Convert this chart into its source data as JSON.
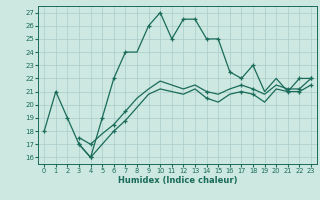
{
  "xlabel": "Humidex (Indice chaleur)",
  "bg_color": "#cce8e0",
  "grid_color": "#aacccc",
  "line_color": "#1a6b5a",
  "xlim": [
    -0.5,
    23.5
  ],
  "ylim": [
    15.5,
    27.5
  ],
  "xticks": [
    0,
    1,
    2,
    3,
    4,
    5,
    6,
    7,
    8,
    9,
    10,
    11,
    12,
    13,
    14,
    15,
    16,
    17,
    18,
    19,
    20,
    21,
    22,
    23
  ],
  "yticks": [
    16,
    17,
    18,
    19,
    20,
    21,
    22,
    23,
    24,
    25,
    26,
    27
  ],
  "main_x": [
    0,
    1,
    2,
    3,
    4,
    5,
    6,
    7,
    8,
    9,
    10,
    11,
    12,
    13,
    14,
    15,
    16,
    17,
    18,
    19,
    20,
    21,
    22,
    23
  ],
  "main_y": [
    18,
    21,
    19,
    17,
    16,
    19,
    22,
    24,
    24,
    26,
    27,
    25,
    26.5,
    26.5,
    25,
    25,
    22.5,
    22,
    23,
    21,
    22,
    21,
    22,
    22
  ],
  "line1_x": [
    3,
    4,
    5,
    6,
    7,
    8,
    9,
    10,
    11,
    12,
    13,
    14,
    15,
    16,
    17,
    18,
    19,
    20,
    21,
    22,
    23
  ],
  "line1_y": [
    17.5,
    17,
    17.8,
    18.5,
    19.5,
    20.5,
    21.2,
    21.8,
    21.5,
    21.2,
    21.5,
    21,
    20.8,
    21.2,
    21.5,
    21.2,
    20.8,
    21.5,
    21.2,
    21.2,
    22
  ],
  "line2_x": [
    3,
    4,
    5,
    6,
    7,
    8,
    9,
    10,
    11,
    12,
    13,
    14,
    15,
    16,
    17,
    18,
    19,
    20,
    21,
    22,
    23
  ],
  "line2_y": [
    17,
    16,
    17,
    18,
    18.8,
    19.8,
    20.8,
    21.2,
    21,
    20.8,
    21.2,
    20.5,
    20.2,
    20.8,
    21,
    20.8,
    20.2,
    21.2,
    21,
    21,
    21.5
  ],
  "marker_x_main": [
    0,
    1,
    2,
    3,
    4,
    5,
    6,
    7,
    9,
    10,
    11,
    12,
    13,
    14,
    15,
    16,
    17,
    18,
    22,
    23
  ],
  "marker_y_main": [
    18,
    21,
    19,
    17,
    16,
    19,
    22,
    24,
    26,
    27,
    25,
    26.5,
    26.5,
    25,
    25,
    22.5,
    22,
    23,
    22,
    22
  ],
  "marker_x_l1": [
    3,
    4,
    6,
    7,
    14,
    17,
    18,
    21,
    22,
    23
  ],
  "marker_y_l1": [
    17.5,
    17,
    18.5,
    19.5,
    21,
    21.5,
    21.2,
    21.2,
    21.2,
    22
  ],
  "marker_x_l2": [
    3,
    4,
    6,
    7,
    14,
    17,
    18,
    21,
    22,
    23
  ],
  "marker_y_l2": [
    17,
    16,
    18,
    18.8,
    20.5,
    21,
    20.8,
    21,
    21,
    21.5
  ]
}
